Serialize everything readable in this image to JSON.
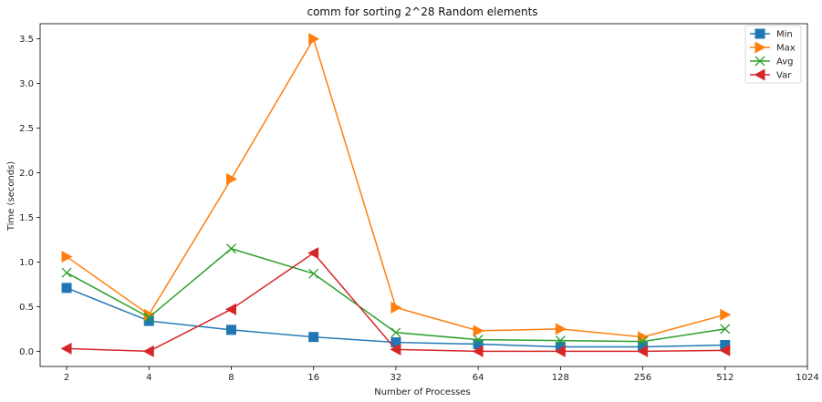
{
  "chart_data": {
    "type": "line",
    "title": "comm for sorting 2^28 Random elements",
    "xlabel": "Number of Processes",
    "ylabel": "Time (seconds)",
    "x_scale": "log2",
    "x_ticks": [
      "2",
      "4",
      "8",
      "16",
      "32",
      "64",
      "128",
      "256",
      "512",
      "1024"
    ],
    "x": [
      2,
      4,
      8,
      16,
      32,
      64,
      128,
      256,
      512
    ],
    "y_ticks": [
      "0.0",
      "0.5",
      "1.0",
      "1.5",
      "2.0",
      "2.5",
      "3.0",
      "3.5"
    ],
    "xlim": [
      1.6,
      1024
    ],
    "ylim": [
      -0.17,
      3.67
    ],
    "grid": false,
    "legend_position": "top-right",
    "series": [
      {
        "name": "Min",
        "color": "#1f77b4",
        "marker": "square",
        "values": [
          0.71,
          0.34,
          0.24,
          0.16,
          0.1,
          0.08,
          0.05,
          0.05,
          0.07
        ]
      },
      {
        "name": "Max",
        "color": "#ff7f0e",
        "marker": "triangle-right",
        "values": [
          1.06,
          0.41,
          1.93,
          3.5,
          0.49,
          0.23,
          0.25,
          0.16,
          0.41
        ]
      },
      {
        "name": "Avg",
        "color": "#2ca02c",
        "marker": "x",
        "values": [
          0.88,
          0.38,
          1.15,
          0.87,
          0.21,
          0.13,
          0.12,
          0.11,
          0.25
        ]
      },
      {
        "name": "Var",
        "color": "#d62728",
        "marker": "triangle-left",
        "values": [
          0.03,
          0.0,
          0.47,
          1.1,
          0.02,
          0.0,
          0.0,
          0.0,
          0.01
        ]
      }
    ]
  }
}
